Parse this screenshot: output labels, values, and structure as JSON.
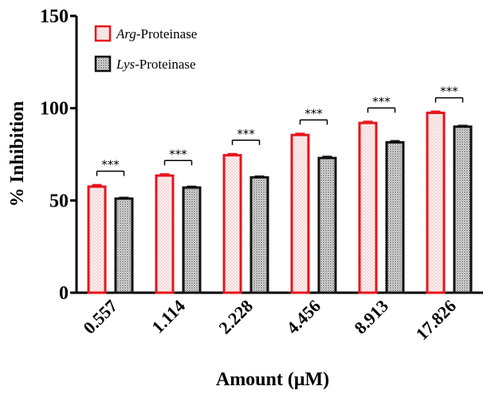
{
  "chart_data": {
    "type": "bar",
    "categories": [
      "0.557",
      "1.114",
      "2.228",
      "4.456",
      "8.913",
      "17.826"
    ],
    "series": [
      {
        "name_italic": "Arg",
        "name_rest": "-Proteinase",
        "values": [
          57.5,
          63.5,
          74.5,
          85.5,
          92.0,
          97.5
        ],
        "errors": [
          1.0,
          0.8,
          0.8,
          0.8,
          0.8,
          0.8
        ],
        "color": "#e8141c",
        "fill": "#fbeaea"
      },
      {
        "name_italic": "Lys",
        "name_rest": "-Proteinase",
        "values": [
          51.0,
          57.0,
          62.5,
          73.0,
          81.5,
          90.0
        ],
        "errors": [
          0.6,
          0.6,
          0.6,
          0.8,
          0.8,
          0.6
        ],
        "color": "#111111",
        "fill": "#c9c9c9"
      }
    ],
    "significance": [
      "***",
      "***",
      "***",
      "***",
      "***",
      "***"
    ],
    "xlabel": "Amount (μM)",
    "ylabel": "% Inhibition",
    "yticks": [
      0,
      50,
      100,
      150
    ],
    "ylim": [
      0,
      150
    ],
    "legend_position": "top-left"
  }
}
